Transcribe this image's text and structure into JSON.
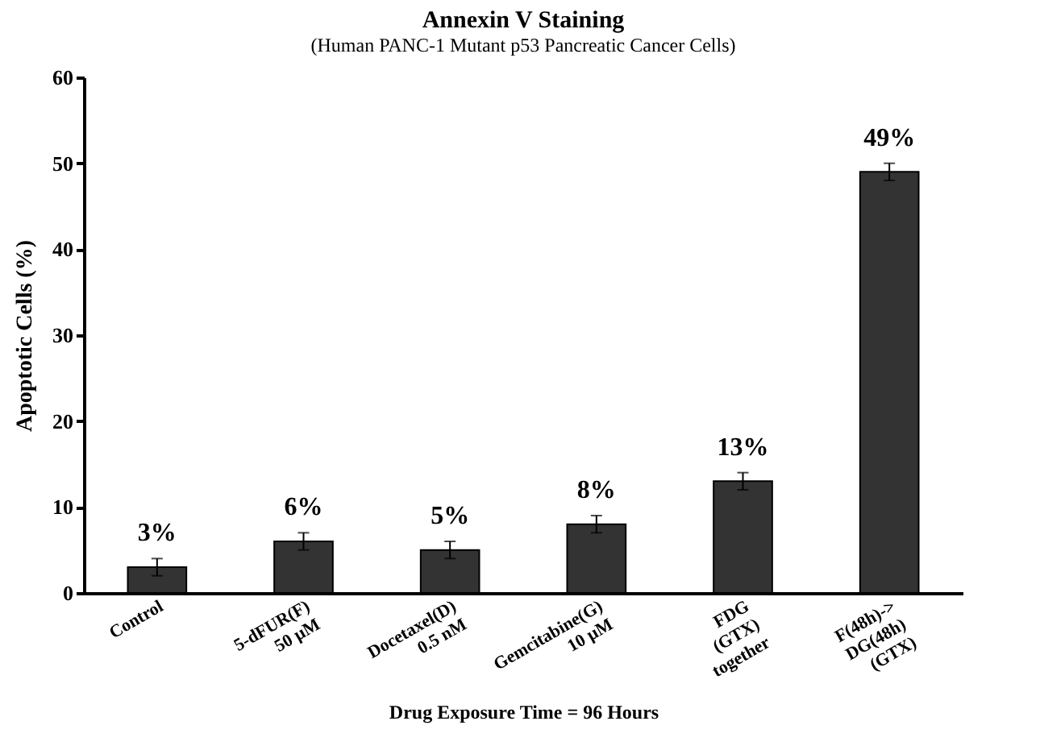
{
  "chart_data": {
    "type": "bar",
    "title": "Annexin V Staining",
    "subtitle": "(Human PANC-1 Mutant p53 Pancreatic Cancer Cells)",
    "xlabel": "Drug Exposure Time = 96 Hours",
    "ylabel": "Apoptotic Cells (%)",
    "categories": [
      "Control",
      "5-dFUR(F)\n50 µM",
      "Docetaxel(D)\n0.5 nM",
      "Gemcitabine(G)\n10 µM",
      "FDG\n(GTX)\ntogether",
      "F(48h)->\nDG(48h)\n(GTX)"
    ],
    "values": [
      3,
      6,
      5,
      8,
      13,
      49
    ],
    "errors": [
      1,
      1,
      1,
      1,
      1,
      1
    ],
    "value_labels": [
      "3%",
      "6%",
      "5%",
      "8%",
      "13%",
      "49%"
    ],
    "color": "#333333",
    "ylim": [
      0,
      60
    ],
    "yticks": [
      0,
      10,
      20,
      30,
      40,
      50,
      60
    ],
    "grid": false
  }
}
